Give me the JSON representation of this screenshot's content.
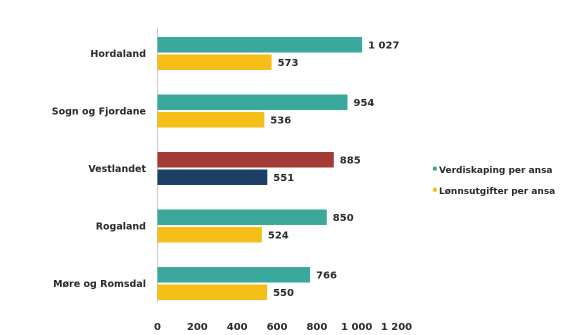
{
  "chart_data": {
    "type": "bar",
    "orientation": "horizontal",
    "categories": [
      "Hordaland",
      "Sogn og Fjordane",
      "Vestlandet",
      "Rogaland",
      "Møre og Romsdal"
    ],
    "series": [
      {
        "name": "Verdiskaping per ansa",
        "values": [
          1027,
          954,
          885,
          850,
          766
        ],
        "color": "#3aa89a",
        "highlight_color": "#a33a36"
      },
      {
        "name": "Lønnsutgifter per ansa",
        "values": [
          573,
          536,
          551,
          524,
          550
        ],
        "color": "#f5bf17",
        "highlight_color": "#1c3f66"
      }
    ],
    "highlight_category": "Vestlandet",
    "value_labels": [
      [
        "1 027",
        "573"
      ],
      [
        "954",
        "536"
      ],
      [
        "885",
        "551"
      ],
      [
        "850",
        "524"
      ],
      [
        "766",
        "550"
      ]
    ],
    "xlim": [
      0,
      1200
    ],
    "xticks": [
      0,
      200,
      400,
      600,
      800,
      1000,
      1200
    ],
    "xtick_labels": [
      "0",
      "200",
      "400",
      "600",
      "800",
      "1 000",
      "1 200"
    ],
    "grid": false,
    "legend_position": "right",
    "legend_marker": "•"
  }
}
